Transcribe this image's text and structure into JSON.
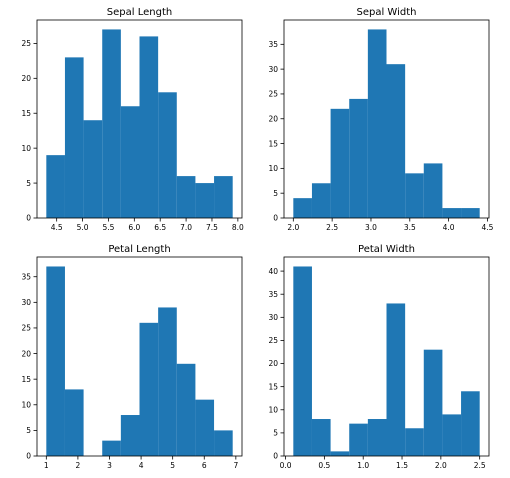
{
  "chart_data": [
    {
      "type": "bar",
      "subtype": "histogram",
      "title": "Sepal Length",
      "xlabel": "",
      "ylabel": "",
      "bin_edges": [
        4.3,
        4.66,
        5.02,
        5.38,
        5.74,
        6.1,
        6.46,
        6.82,
        7.18,
        7.54,
        7.9
      ],
      "values": [
        9,
        23,
        14,
        27,
        16,
        26,
        18,
        6,
        5,
        6
      ],
      "xlim": [
        4.12,
        8.08
      ],
      "ylim": [
        0,
        28.35
      ],
      "xticks": [
        4.5,
        5.0,
        5.5,
        6.0,
        6.5,
        7.0,
        7.5,
        8.0
      ],
      "xtick_labels": [
        "4.5",
        "5.0",
        "5.5",
        "6.0",
        "6.5",
        "7.0",
        "7.5",
        "8.0"
      ],
      "yticks": [
        0,
        5,
        10,
        15,
        20,
        25
      ],
      "ytick_labels": [
        "0",
        "5",
        "10",
        "15",
        "20",
        "25"
      ],
      "color": "#1f77b4",
      "grid": false
    },
    {
      "type": "bar",
      "subtype": "histogram",
      "title": "Sepal Width",
      "xlabel": "",
      "ylabel": "",
      "bin_edges": [
        2.0,
        2.24,
        2.48,
        2.72,
        2.96,
        3.2,
        3.44,
        3.68,
        3.92,
        4.16,
        4.4
      ],
      "values": [
        4,
        7,
        22,
        24,
        38,
        31,
        9,
        11,
        2,
        2
      ],
      "xlim": [
        1.88,
        4.52
      ],
      "ylim": [
        0,
        39.9
      ],
      "xticks": [
        2.0,
        2.5,
        3.0,
        3.5,
        4.0,
        4.5
      ],
      "xtick_labels": [
        "2.0",
        "2.5",
        "3.0",
        "3.5",
        "4.0",
        "4.5"
      ],
      "yticks": [
        0,
        5,
        10,
        15,
        20,
        25,
        30,
        35
      ],
      "ytick_labels": [
        "0",
        "5",
        "10",
        "15",
        "20",
        "25",
        "30",
        "35"
      ],
      "color": "#1f77b4",
      "grid": false
    },
    {
      "type": "bar",
      "subtype": "histogram",
      "title": "Petal Length",
      "xlabel": "",
      "ylabel": "",
      "bin_edges": [
        1.0,
        1.59,
        2.18,
        2.77,
        3.36,
        3.95,
        4.54,
        5.13,
        5.72,
        6.31,
        6.9
      ],
      "values": [
        37,
        13,
        0,
        3,
        8,
        26,
        29,
        18,
        11,
        5
      ],
      "xlim": [
        0.705,
        7.195
      ],
      "ylim": [
        0,
        38.85
      ],
      "xticks": [
        1,
        2,
        3,
        4,
        5,
        6,
        7
      ],
      "xtick_labels": [
        "1",
        "2",
        "3",
        "4",
        "5",
        "6",
        "7"
      ],
      "yticks": [
        0,
        5,
        10,
        15,
        20,
        25,
        30,
        35
      ],
      "ytick_labels": [
        "0",
        "5",
        "10",
        "15",
        "20",
        "25",
        "30",
        "35"
      ],
      "color": "#1f77b4",
      "grid": false
    },
    {
      "type": "bar",
      "subtype": "histogram",
      "title": "Petal Width",
      "xlabel": "",
      "ylabel": "",
      "bin_edges": [
        0.1,
        0.34,
        0.58,
        0.82,
        1.06,
        1.3,
        1.54,
        1.78,
        2.02,
        2.26,
        2.5
      ],
      "values": [
        41,
        8,
        1,
        7,
        8,
        33,
        6,
        23,
        9,
        14
      ],
      "xlim": [
        -0.02,
        2.62
      ],
      "ylim": [
        0,
        43.05
      ],
      "xticks": [
        0.0,
        0.5,
        1.0,
        1.5,
        2.0,
        2.5
      ],
      "xtick_labels": [
        "0.0",
        "0.5",
        "1.0",
        "1.5",
        "2.0",
        "2.5"
      ],
      "yticks": [
        0,
        5,
        10,
        15,
        20,
        25,
        30,
        35,
        40
      ],
      "ytick_labels": [
        "0",
        "5",
        "10",
        "15",
        "20",
        "25",
        "30",
        "35",
        "40"
      ],
      "color": "#1f77b4",
      "grid": false
    }
  ]
}
